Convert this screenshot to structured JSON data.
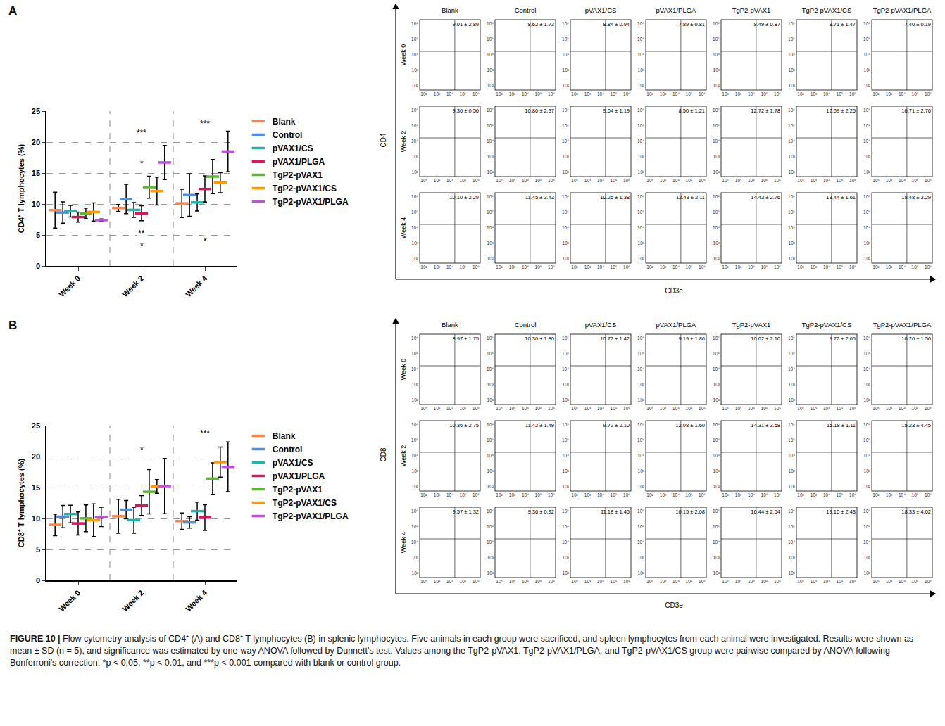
{
  "chart_data": [
    {
      "type": "scatter",
      "panel_label": "A",
      "y_label": "CD4⁺ T lymphocytes (%)",
      "categories": [
        "Week 0",
        "Week 2",
        "Week 4"
      ],
      "ylim": [
        0,
        25
      ],
      "yticks": [
        0,
        5,
        10,
        15,
        20,
        25
      ],
      "grid": true,
      "legend": "right",
      "marker": "dash",
      "series": [
        {
          "name": "Blank",
          "color": "#f4874b",
          "values": [
            9.01,
            9.36,
            10.1
          ],
          "errors": [
            2.89,
            0.56,
            2.29
          ]
        },
        {
          "name": "Control",
          "color": "#4a90e2",
          "values": [
            8.62,
            10.8,
            11.45
          ],
          "errors": [
            1.73,
            2.37,
            3.43
          ]
        },
        {
          "name": "pVAX1/CS",
          "color": "#1fb5ac",
          "values": [
            8.84,
            9.04,
            10.25
          ],
          "errors": [
            0.94,
            1.19,
            1.38
          ]
        },
        {
          "name": "pVAX1/PLGA",
          "color": "#e0115f",
          "values": [
            7.89,
            8.5,
            12.43
          ],
          "errors": [
            0.81,
            1.21,
            2.11
          ]
        },
        {
          "name": "TgP2-pVAX1",
          "color": "#5cb832",
          "values": [
            8.49,
            12.72,
            14.43
          ],
          "errors": [
            0.87,
            1.78,
            2.76
          ]
        },
        {
          "name": "TgP2-pVAX1/CS",
          "color": "#ff9900",
          "values": [
            8.71,
            12.09,
            13.44
          ],
          "errors": [
            1.47,
            2.25,
            1.61
          ]
        },
        {
          "name": "TgP2-pVAX1/PLGA",
          "color": "#c04fe0",
          "values": [
            7.4,
            16.71,
            18.48
          ],
          "errors": [
            0.19,
            2.76,
            3.29
          ]
        }
      ],
      "annotations": [
        {
          "text": "***",
          "x": 1,
          "y": 21.5
        },
        {
          "text": "*",
          "x": 1,
          "y": 16.5
        },
        {
          "text": "**",
          "x": 1,
          "y": 5.2
        },
        {
          "text": "*",
          "x": 1,
          "y": 3.2
        },
        {
          "text": "***",
          "x": 2,
          "y": 23
        },
        {
          "text": "*",
          "x": 2,
          "y": 4
        }
      ],
      "flow": {
        "y_label": "CD4",
        "x_label": "CD3e",
        "ticks": [
          "10²",
          "10³",
          "10⁴",
          "10⁵",
          "10⁶"
        ],
        "labels": [
          [
            "9.01 ± 2.89",
            "8.62 ± 1.73",
            "8.84 ± 0.94",
            "7.89 ± 0.81",
            "8.49 ± 0.87",
            "8.71 ± 1.47",
            "7.40 ± 0.19"
          ],
          [
            "9.36 ± 0.56",
            "10.80 ± 2.37",
            "9.04 ± 1.19",
            "8.50 ± 1.21",
            "12.72 ± 1.78",
            "12.09 ± 2.25",
            "16.71 ± 2.76"
          ],
          [
            "10.10 ± 2.29",
            "11.45 ± 3.43",
            "10.25 ± 1.38",
            "12.43 ± 2.11",
            "14.43 ± 2.76",
            "13.44 ± 1.61",
            "18.48 ± 3.29"
          ]
        ]
      }
    },
    {
      "type": "scatter",
      "panel_label": "B",
      "y_label": "CD8⁺ T lymphocytes (%)",
      "categories": [
        "Week 0",
        "Week 2",
        "Week 4"
      ],
      "ylim": [
        0,
        25
      ],
      "yticks": [
        0,
        5,
        10,
        15,
        20,
        25
      ],
      "grid": true,
      "legend": "right",
      "marker": "dash",
      "series": [
        {
          "name": "Blank",
          "color": "#f4874b",
          "values": [
            8.97,
            10.36,
            9.57
          ],
          "errors": [
            1.75,
            2.75,
            1.32
          ]
        },
        {
          "name": "Control",
          "color": "#4a90e2",
          "values": [
            10.3,
            11.42,
            9.36
          ],
          "errors": [
            1.8,
            1.49,
            0.92
          ]
        },
        {
          "name": "pVAX1/CS",
          "color": "#1fb5ac",
          "values": [
            10.72,
            9.72,
            11.18
          ],
          "errors": [
            1.42,
            2.1,
            1.45
          ]
        },
        {
          "name": "pVAX1/PLGA",
          "color": "#e0115f",
          "values": [
            9.19,
            12.08,
            10.15
          ],
          "errors": [
            1.86,
            1.6,
            2.08
          ]
        },
        {
          "name": "TgP2-pVAX1",
          "color": "#5cb832",
          "values": [
            10.02,
            14.31,
            16.44
          ],
          "errors": [
            2.16,
            3.58,
            2.54
          ]
        },
        {
          "name": "TgP2-pVAX1/CS",
          "color": "#ff9900",
          "values": [
            9.72,
            15.18,
            19.1
          ],
          "errors": [
            2.65,
            1.11,
            2.43
          ]
        },
        {
          "name": "TgP2-pVAX1/PLGA",
          "color": "#c04fe0",
          "values": [
            10.26,
            15.23,
            18.33
          ],
          "errors": [
            1.56,
            4.45,
            4.02
          ]
        }
      ],
      "annotations": [
        {
          "text": "*",
          "x": 1,
          "y": 21
        },
        {
          "text": "***",
          "x": 2,
          "y": 23.8
        }
      ],
      "flow": {
        "y_label": "CD8",
        "x_label": "CD3e",
        "ticks": [
          "10²",
          "10³",
          "10⁴",
          "10⁵",
          "10⁶"
        ],
        "labels": [
          [
            "8.97 ± 1.75",
            "10.30 ± 1.80",
            "10.72 ± 1.42",
            "9.19 ± 1.86",
            "10.02 ± 2.16",
            "9.72 ± 2.65",
            "10.26 ± 1.56"
          ],
          [
            "10.36 ± 2.75",
            "11.42 ± 1.49",
            "9.72 ± 2.10",
            "12.08 ± 1.60",
            "14.31 ± 3.58",
            "15.18 ± 1.11",
            "15.23 ± 4.45"
          ],
          [
            "9.57 ± 1.32",
            "9.36 ± 0.92",
            "11.18 ± 1.45",
            "10.15 ± 2.08",
            "16.44 ± 2.54",
            "19.10 ± 2.43",
            "18.33 ± 4.02"
          ]
        ]
      }
    }
  ],
  "caption": {
    "head": "FIGURE 10 |",
    "text": "Flow cytometry analysis of CD4⁺ (A) and CD8⁺ T lymphocytes (B) in splenic lymphocytes. Five animals in each group were sacrificed, and spleen lymphocytes from each animal were investigated. Results were shown as mean ± SD (n = 5), and significance was estimated by one-way ANOVA followed by Dunnett's test. Values among the TgP2-pVAX1, TgP2-pVAX1/PLGA, and TgP2-pVAX1/CS group were pairwise compared by ANOVA following Bonferroni's correction. *p < 0.05, **p < 0.01, and ***p < 0.001 compared with blank or control group."
  }
}
